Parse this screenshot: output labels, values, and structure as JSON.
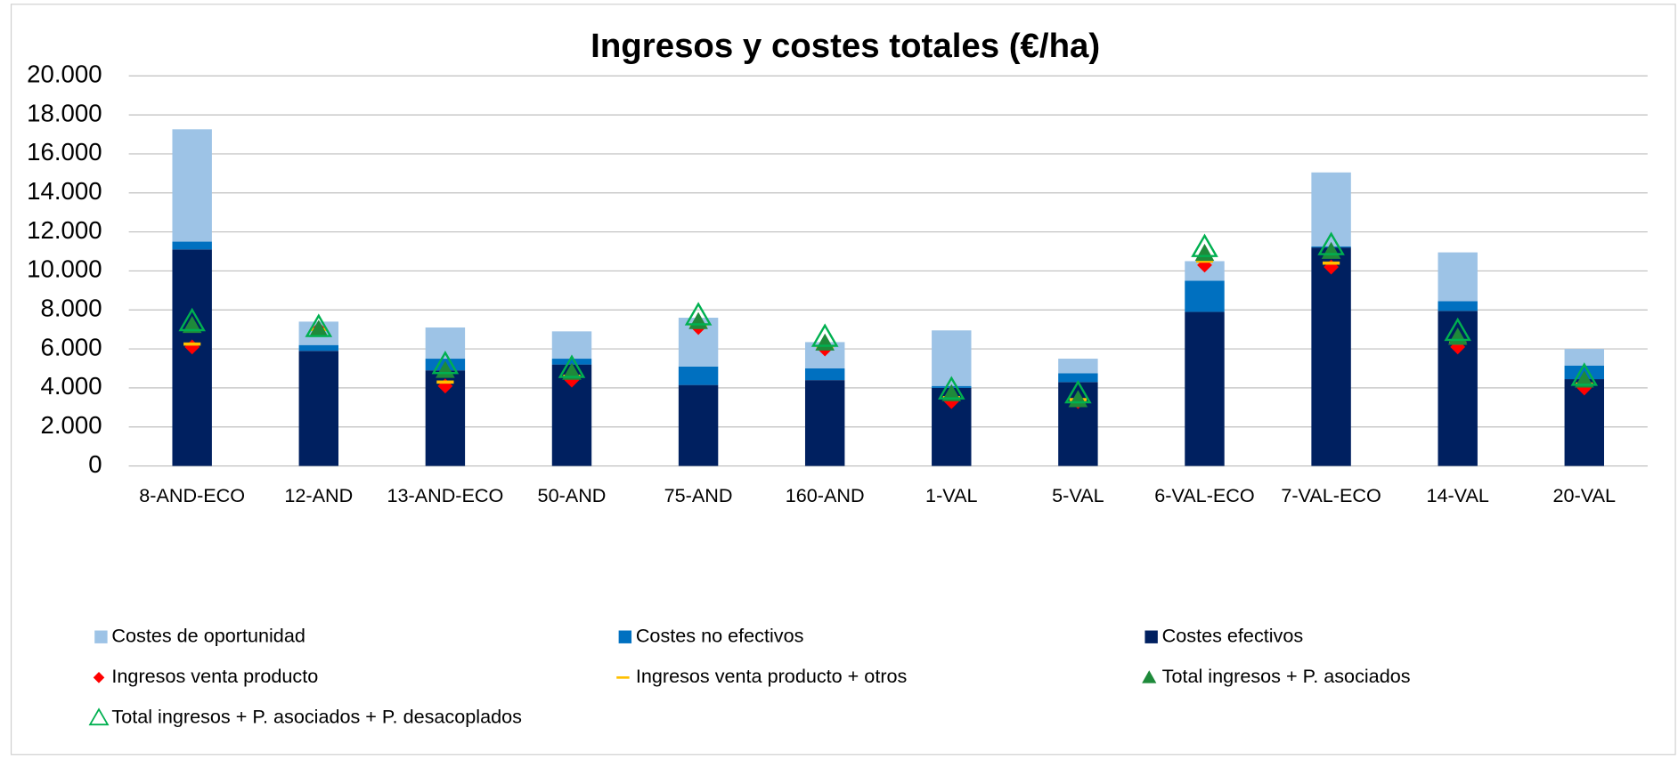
{
  "chart_data": {
    "type": "bar",
    "title": "Ingresos y costes totales (€/ha)",
    "categories": [
      "8-AND-ECO",
      "12-AND",
      "13-AND-ECO",
      "50-AND",
      "75-AND",
      "160-AND",
      "1-VAL",
      "5-VAL",
      "6-VAL-ECO",
      "7-VAL-ECO",
      "14-VAL",
      "20-VAL"
    ],
    "series": [
      {
        "name": "Costes de oportunidad",
        "type": "bar",
        "color": "#9dc3e6",
        "values": [
          5760,
          1200,
          1600,
          1400,
          2500,
          1350,
          2850,
          750,
          1000,
          3800,
          2500,
          850
        ]
      },
      {
        "name": "Costes no efectivos",
        "type": "bar",
        "color": "#0070c0",
        "values": [
          400,
          300,
          600,
          300,
          950,
          600,
          100,
          450,
          1600,
          50,
          500,
          700
        ]
      },
      {
        "name": "Costes efectivos",
        "type": "bar",
        "color": "#002060",
        "values": [
          11100,
          5900,
          4900,
          5200,
          4150,
          4400,
          4000,
          4300,
          7900,
          11200,
          7950,
          4450
        ]
      },
      {
        "name": "Ingresos venta producto",
        "type": "marker",
        "marker": "diamond",
        "color": "#ff0000",
        "values": [
          6100,
          7000,
          4100,
          4400,
          7100,
          6000,
          3300,
          3300,
          10300,
          10200,
          6100,
          4000
        ]
      },
      {
        "name": "Ingresos venta producto + otros",
        "type": "marker",
        "marker": "dash",
        "color": "#ffc000",
        "values": [
          6250,
          7000,
          4300,
          4600,
          7200,
          6100,
          3500,
          3400,
          10500,
          10400,
          6300,
          4200
        ]
      },
      {
        "name": "Total ingresos + P. asociados",
        "type": "marker",
        "marker": "triangle",
        "color": "#1e8a3a",
        "values": [
          7200,
          7000,
          4900,
          4800,
          7400,
          6300,
          3700,
          3400,
          10900,
          11000,
          6600,
          4400
        ]
      },
      {
        "name": "Total ingresos + P. asociados + P. desacoplados",
        "type": "marker",
        "marker": "triangle-open",
        "color": "#00b050",
        "values": [
          7400,
          7100,
          5200,
          5000,
          7700,
          6600,
          3900,
          3700,
          11200,
          11300,
          6900,
          4600
        ]
      }
    ],
    "ylim": [
      0,
      20000
    ],
    "yticks": [
      0,
      {
        "value": 2000,
        "label": "2.000"
      },
      {
        "value": 4000,
        "label": "4.000"
      },
      {
        "value": 6000,
        "label": "6.000"
      },
      {
        "value": 8000,
        "label": "8.000"
      },
      {
        "value": 10000,
        "label": "10.000"
      },
      {
        "value": 12000,
        "label": "12.000"
      },
      {
        "value": 14000,
        "label": "14.000"
      },
      {
        "value": 16000,
        "label": "16.000"
      },
      {
        "value": 18000,
        "label": "18.000"
      },
      {
        "value": 20000,
        "label": "20.000"
      }
    ],
    "grid": true,
    "legend": "bottom"
  }
}
